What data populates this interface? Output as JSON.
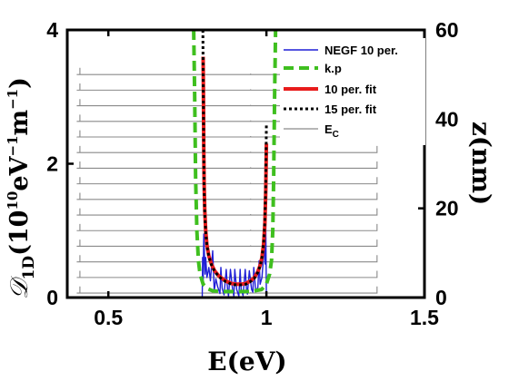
{
  "chart_data": {
    "type": "line",
    "x_axis": {
      "label_main": "E",
      "label_unit": "(eV)",
      "lim": [
        0.37,
        1.5
      ],
      "ticks": [
        0.5,
        1,
        1.5
      ],
      "tick_labels": [
        "0.5",
        "1",
        "1.5"
      ]
    },
    "y_left_axis": {
      "lim": [
        0,
        4
      ],
      "ticks": [
        0,
        2,
        4
      ],
      "tick_labels": [
        "0",
        "2",
        "4"
      ]
    },
    "y_right_axis": {
      "label": "z(nm)",
      "lim": [
        0,
        60
      ],
      "ticks": [
        0,
        20,
        40,
        60
      ],
      "tick_labels": [
        "0",
        "20",
        "40",
        "60"
      ]
    },
    "legend_position": "top-right",
    "legend": {
      "negf": "NEGF 10 per.",
      "kp": "k.p",
      "fit10": "10 per. fit",
      "fit15": "15 per. fit",
      "ec_main": "E",
      "ec_sub": "C"
    },
    "colors": {
      "negf": "#1f1fd6",
      "kp": "#3fbf1f",
      "fit10": "#e81c1c",
      "fit15": "#000000",
      "ec": "#8a8a8a"
    },
    "series": [
      {
        "name": "NEGF 10 per.",
        "axis": "left",
        "style": "thin-solid",
        "x": [
          0.797,
          0.798,
          0.8,
          0.802,
          0.806,
          0.808,
          0.812,
          0.818,
          0.823,
          0.83,
          0.835,
          0.84,
          0.846,
          0.853,
          0.856,
          0.86,
          0.866,
          0.873,
          0.877,
          0.88,
          0.886,
          0.893,
          0.897,
          0.9,
          0.906,
          0.913,
          0.917,
          0.92,
          0.926,
          0.933,
          0.937,
          0.94,
          0.946,
          0.953,
          0.957,
          0.96,
          0.966,
          0.973,
          0.977,
          0.98,
          0.986,
          0.99,
          0.994,
          0.996,
          0.998,
          1.0
        ],
        "y": [
          0.0,
          0.6,
          0.2,
          0.95,
          0.35,
          0.6,
          0.3,
          0.45,
          0.25,
          0.7,
          0.1,
          0.28,
          0.16,
          0.06,
          0.45,
          0.14,
          0.04,
          0.42,
          0.13,
          0.02,
          0.42,
          0.12,
          0.02,
          0.42,
          0.12,
          0.02,
          0.42,
          0.12,
          0.03,
          0.42,
          0.12,
          0.05,
          0.4,
          0.12,
          0.08,
          0.45,
          0.1,
          0.15,
          0.55,
          0.2,
          0.3,
          0.55,
          0.8,
          0.5,
          1.1,
          0.0
        ]
      },
      {
        "name": "k.p",
        "axis": "left",
        "style": "thick-dashed",
        "x": [
          0.77,
          0.773,
          0.776,
          0.78,
          0.785,
          0.79,
          0.8,
          0.815,
          0.83,
          0.86,
          0.9,
          0.95,
          0.985,
          1.0,
          1.01,
          1.016,
          1.02,
          1.023,
          1.026,
          1.029,
          1.033
        ],
        "y": [
          4.0,
          3.0,
          1.8,
          1.0,
          0.55,
          0.35,
          0.2,
          0.13,
          0.1,
          0.09,
          0.09,
          0.09,
          0.12,
          0.2,
          0.35,
          0.55,
          1.0,
          1.8,
          3.0,
          4.0,
          4.0
        ]
      },
      {
        "name": "10 per. fit",
        "axis": "left",
        "style": "thick-solid",
        "x": [
          0.8,
          0.801,
          0.802,
          0.803,
          0.805,
          0.808,
          0.812,
          0.818,
          0.826,
          0.836,
          0.85,
          0.87,
          0.89,
          0.905,
          0.92,
          0.935,
          0.95,
          0.962,
          0.972,
          0.98,
          0.986,
          0.991,
          0.995,
          0.998,
          1.0
        ],
        "y": [
          3.6,
          2.9,
          2.2,
          1.7,
          1.3,
          1.0,
          0.78,
          0.62,
          0.5,
          0.4,
          0.32,
          0.25,
          0.21,
          0.2,
          0.2,
          0.21,
          0.25,
          0.3,
          0.38,
          0.48,
          0.6,
          0.8,
          1.1,
          1.6,
          2.3
        ]
      },
      {
        "name": "15 per. fit",
        "axis": "left",
        "style": "thick-dotted",
        "x": [
          0.799,
          0.8,
          0.801,
          0.802,
          0.803,
          0.805,
          0.808,
          0.812,
          0.818,
          0.826,
          0.836,
          0.85,
          0.87,
          0.89,
          0.905,
          0.92,
          0.935,
          0.95,
          0.962,
          0.972,
          0.98,
          0.986,
          0.991,
          0.995,
          0.998,
          1.0,
          1.001
        ],
        "y": [
          4.0,
          3.3,
          2.7,
          2.1,
          1.6,
          1.25,
          0.98,
          0.77,
          0.61,
          0.49,
          0.39,
          0.31,
          0.24,
          0.2,
          0.19,
          0.19,
          0.2,
          0.24,
          0.29,
          0.37,
          0.47,
          0.6,
          0.8,
          1.15,
          1.7,
          2.6,
          2.6
        ]
      },
      {
        "name": "E_C",
        "axis": "right",
        "style": "profile",
        "x_start": 0.4,
        "x_end": 1.38,
        "well_x": [
          0.45,
          0.95
        ],
        "barrier_x": [
          0.41,
          1.35
        ],
        "level_z": [
          1,
          4.5,
          8,
          11.5,
          15,
          18.5,
          22,
          25.5,
          29,
          32.5,
          36,
          39.5,
          43,
          46.5,
          50
        ]
      }
    ]
  }
}
